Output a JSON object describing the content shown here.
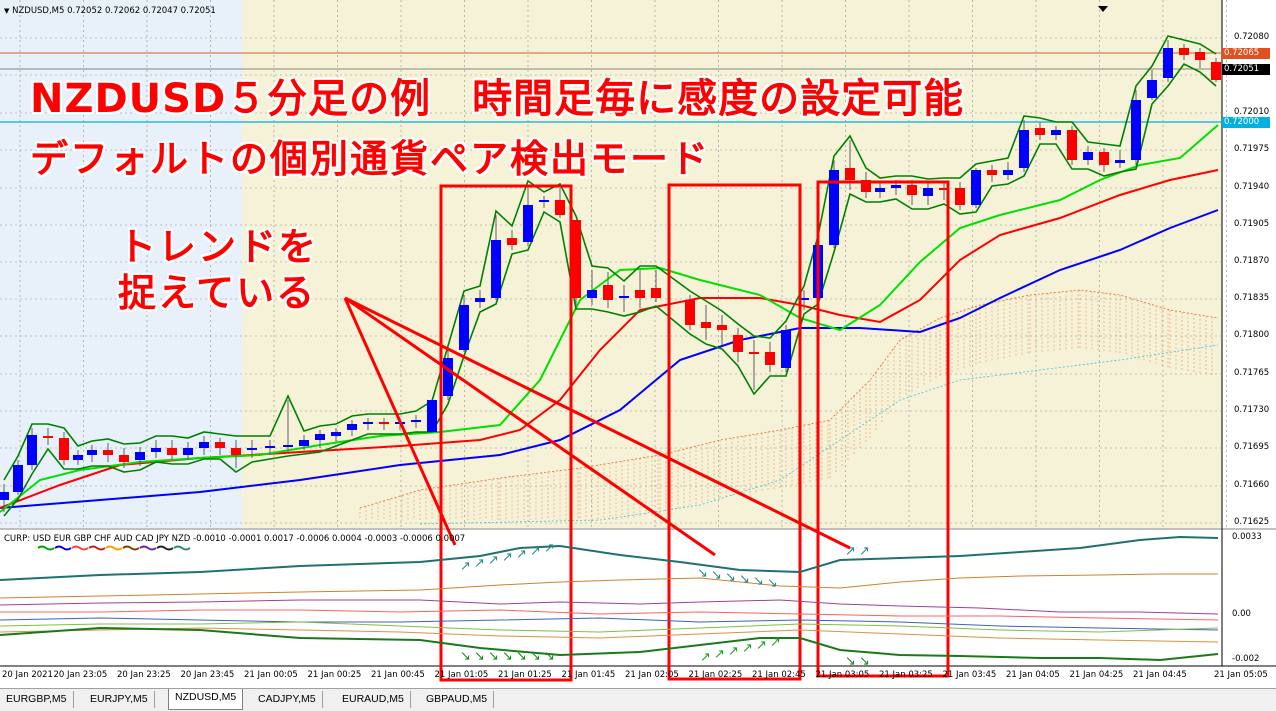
{
  "chart": {
    "symbol_header": "NZDUSD,M5  0.72052 0.72062 0.72047 0.72051",
    "price_labels": [
      "0.72080",
      "0.72065",
      "0.72051",
      "0.72010",
      "0.72000",
      "0.71975",
      "0.71940",
      "0.71905",
      "0.71870",
      "0.71835",
      "0.71800",
      "0.71765",
      "0.71730",
      "0.71695",
      "0.71660",
      "0.71625"
    ],
    "price_tag_red": "0.72065",
    "price_tag_black": "0.72051",
    "price_tag_blue": "0.72000",
    "time_labels": [
      "20 Jan 2021",
      "20 Jan 23:05",
      "20 Jan 23:25",
      "20 Jan 23:45",
      "21 Jan 00:05",
      "21 Jan 00:25",
      "21 Jan 00:45",
      "21 Jan 01:05",
      "21 Jan 01:25",
      "21 Jan 01:45",
      "21 Jan 02:05",
      "21 Jan 02:25",
      "21 Jan 02:45",
      "21 Jan 03:05",
      "21 Jan 03:25",
      "21 Jan 03:45",
      "21 Jan 04:05",
      "21 Jan 04:25",
      "21 Jan 04:45",
      "21 Jan 05:05"
    ],
    "indicator_header": "CURP: USD EUR GBP CHF AUD CAD JPY NZD -0.0010 -0.0001 0.0017 -0.0006 0.0004 -0.0003 -0.0006 0.0007",
    "indicator_labels": [
      "0.0033",
      "0.00",
      "-0.002"
    ],
    "colors": {
      "bull": "#0000ff",
      "bear": "#ff0000",
      "bg": "#f5f2d8",
      "bg_left": "#e8f0fa",
      "envelope": "#008000",
      "ma_fast": "#00e000",
      "ma_mid": "#ff0000",
      "ma_slow": "#0000ff",
      "annotation": "#ff0000"
    }
  },
  "annotations": {
    "title_line1": "NZDUSD５分足の例　時間足毎に感度の設定可能",
    "title_line2": "デフォルトの個別通貨ペア検出モード",
    "trend_line1": "トレンドを",
    "trend_line2": "捉えている"
  },
  "tabs": [
    {
      "label": "EURGBP,M5",
      "active": false
    },
    {
      "label": "EURJPY,M5",
      "active": false
    },
    {
      "label": "NZDUSD,M5",
      "active": true
    },
    {
      "label": "CADJPY,M5",
      "active": false
    },
    {
      "label": "EURAUD,M5",
      "active": false
    },
    {
      "label": "GBPAUD,M5",
      "active": false
    }
  ]
}
